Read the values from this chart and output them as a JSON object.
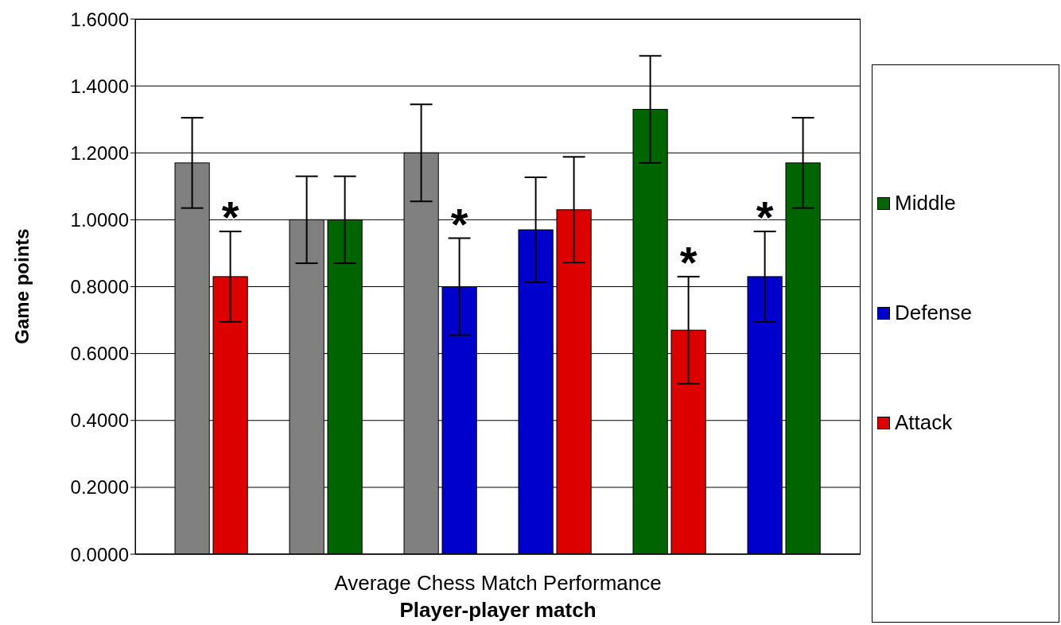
{
  "chart_data": {
    "type": "bar",
    "xlabel": "Player-player match",
    "ylabel": "Game points",
    "annotations": [
      "Average Chess Match Performance"
    ],
    "categories": [
      null,
      null,
      null,
      null,
      null,
      null,
      null,
      null,
      null,
      null,
      null,
      null
    ],
    "stacked": true,
    "series": [
      {
        "color": "#808080",
        "values": [
          1.17,
          null,
          1.0,
          null,
          1.2,
          null,
          null,
          null,
          null,
          null,
          null,
          null
        ],
        "errors": [
          0.135,
          null,
          0.13,
          null,
          0.145,
          null,
          null,
          null,
          null,
          null,
          null,
          null
        ]
      },
      {
        "name": "Middle",
        "color": "#006400",
        "values": [
          null,
          null,
          null,
          1.0,
          null,
          null,
          null,
          null,
          1.33,
          null,
          null,
          1.17
        ],
        "errors": [
          null,
          null,
          null,
          0.13,
          null,
          null,
          null,
          null,
          0.16,
          null,
          null,
          0.135
        ]
      },
      {
        "name": "Defense",
        "color": "#0000cc",
        "values": [
          null,
          null,
          null,
          null,
          null,
          0.8,
          0.97,
          null,
          null,
          null,
          0.83,
          null
        ],
        "errors": [
          null,
          null,
          null,
          null,
          null,
          0.145,
          0.157,
          null,
          null,
          null,
          0.135,
          null
        ],
        "value_labels": [
          null,
          null,
          null,
          null,
          null,
          "*",
          null,
          null,
          null,
          null,
          "*",
          null
        ]
      },
      {
        "name": "Attack",
        "color": "#dd0000",
        "values": [
          null,
          0.83,
          null,
          null,
          null,
          null,
          null,
          1.03,
          null,
          0.67,
          null,
          null
        ],
        "errors": [
          null,
          0.135,
          null,
          null,
          null,
          null,
          null,
          0.158,
          null,
          0.16,
          null,
          null
        ],
        "value_labels": [
          null,
          "*",
          null,
          null,
          null,
          null,
          null,
          null,
          null,
          "*",
          null,
          null
        ]
      }
    ],
    "ylim": [
      0,
      1.6
    ],
    "yticks": [
      {
        "value": 0,
        "label": "0.0000"
      },
      {
        "value": 0.2,
        "label": "0.2000"
      },
      {
        "value": 0.4,
        "label": "0.4000"
      },
      {
        "value": 0.6,
        "label": "0.6000"
      },
      {
        "value": 0.8,
        "label": "0.8000"
      },
      {
        "value": 1,
        "label": "1.0000"
      },
      {
        "value": 1.2,
        "label": "1.2000"
      },
      {
        "value": 1.4,
        "label": "1.4000"
      },
      {
        "value": 1.6,
        "label": "1.6000"
      }
    ],
    "grid": "y",
    "legend": "right"
  }
}
